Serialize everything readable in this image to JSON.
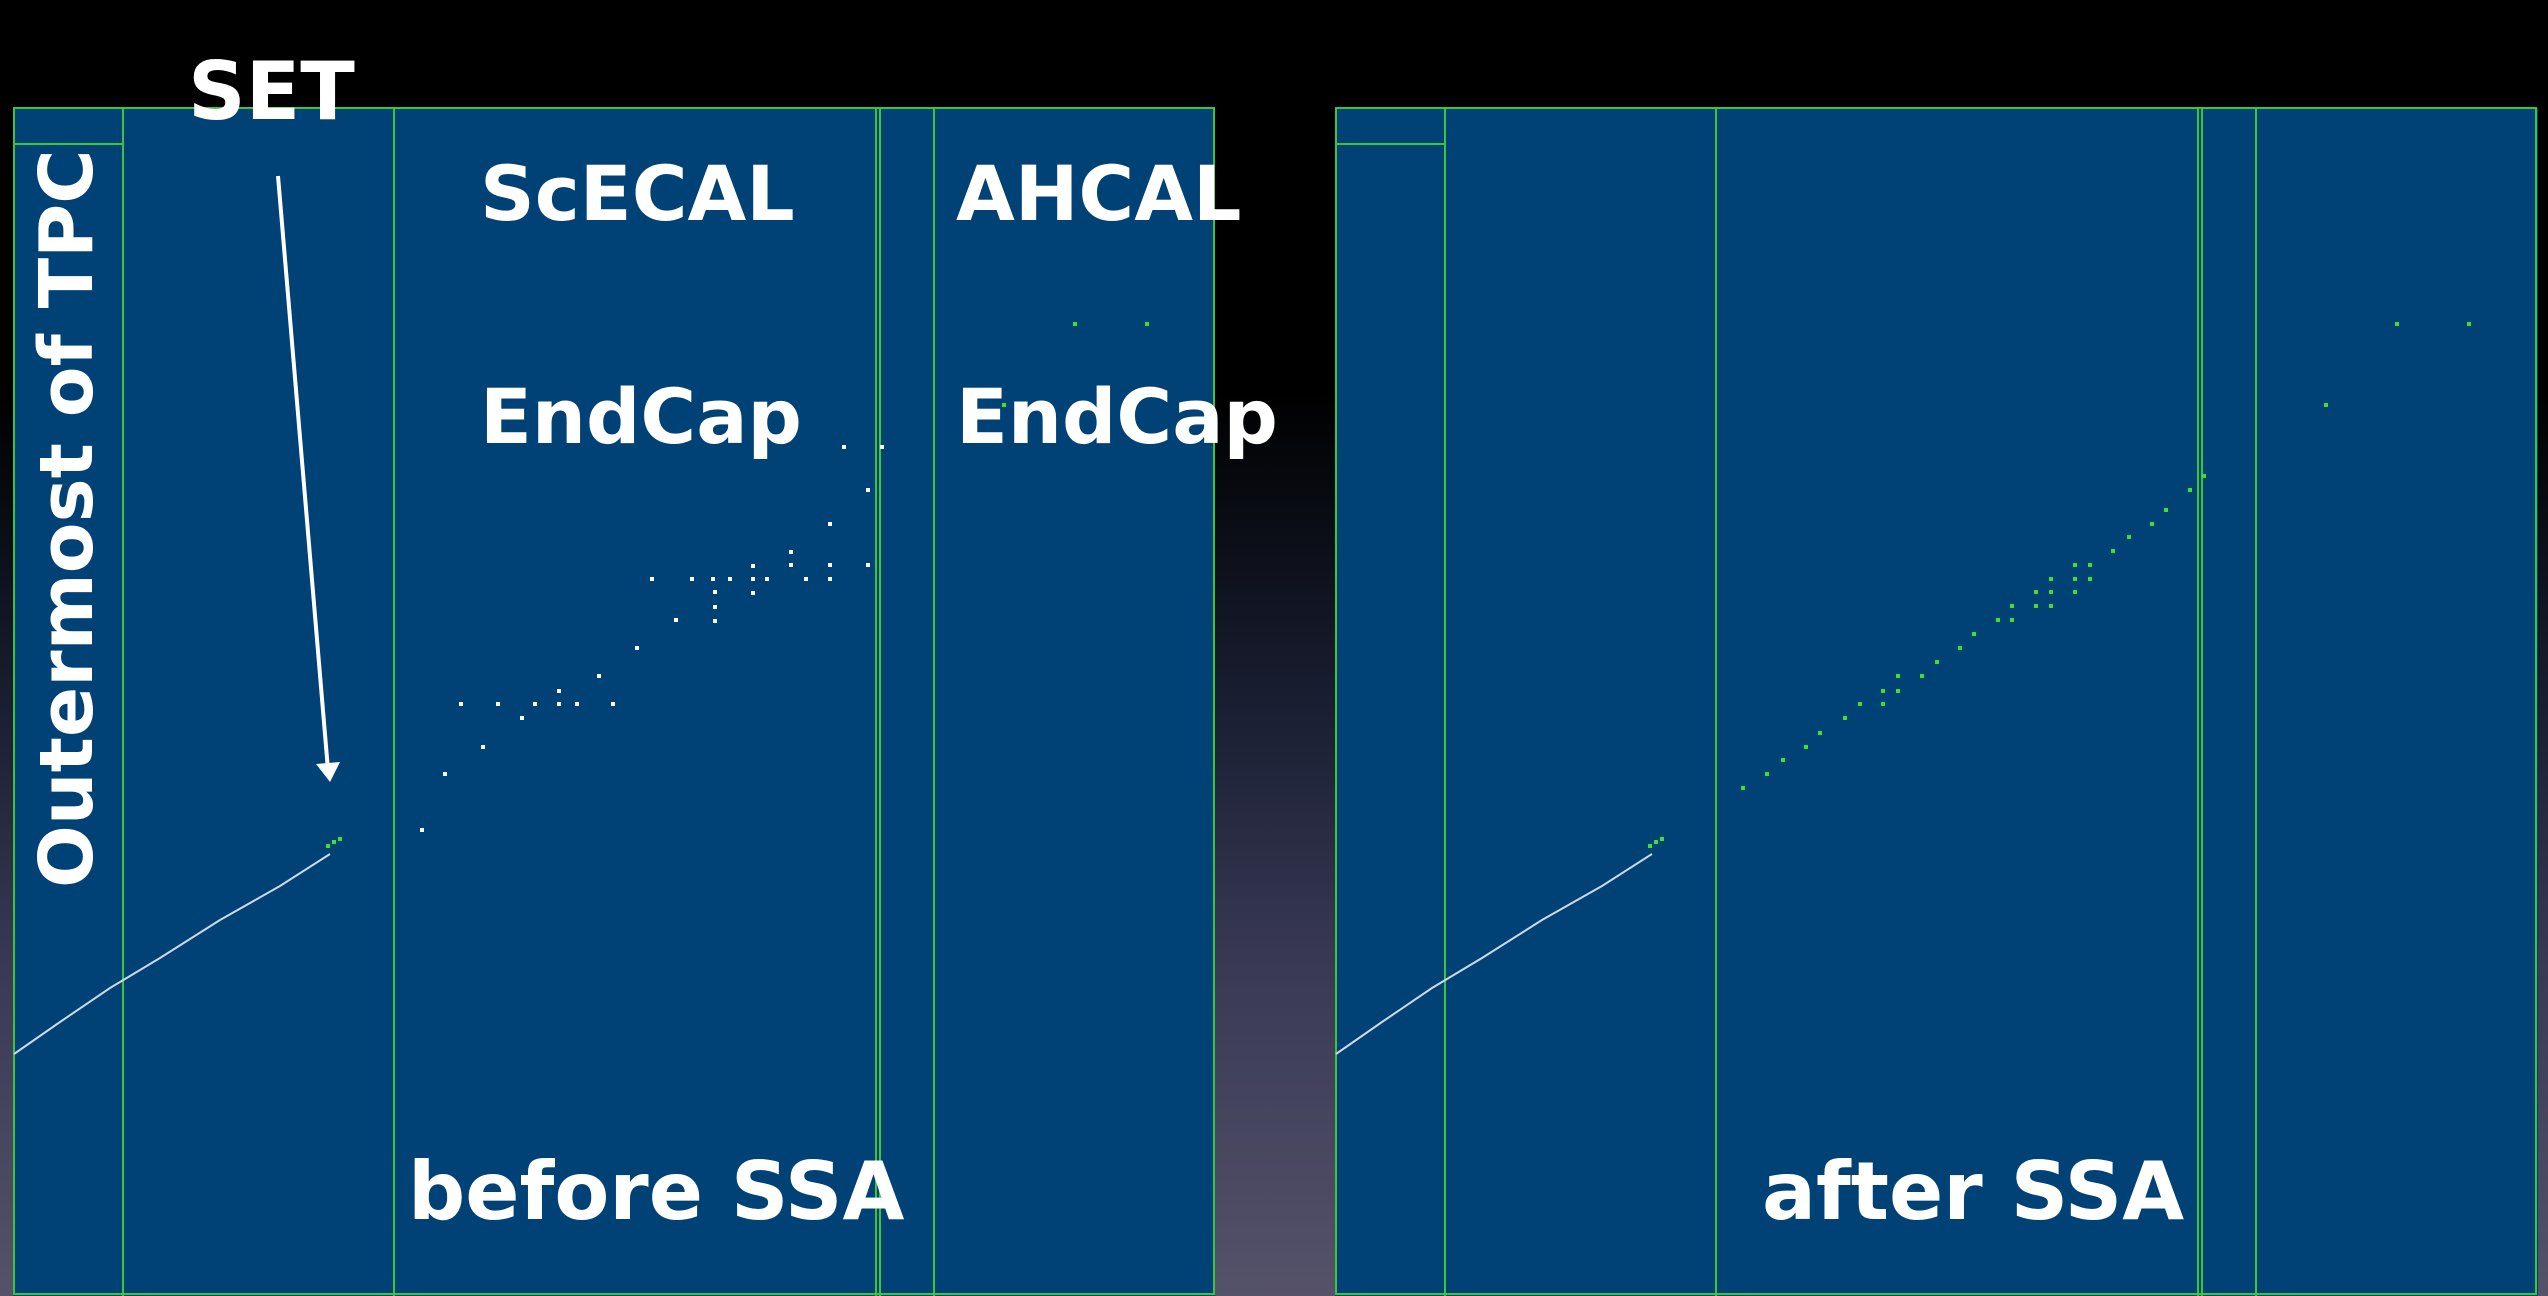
{
  "labels": {
    "set": "SET",
    "scecal_line1": "ScECAL",
    "scecal_line2": "EndCap",
    "ahcal_line1": "AHCAL",
    "ahcal_line2": "EndCap",
    "tpc": "Outermost of TPC",
    "before": "before SSA",
    "after": "after SSA"
  },
  "colors": {
    "panel": "#004176",
    "boundary": "#3cc43c",
    "hit_before": "#ffffff",
    "hit_after": "#3fe02e",
    "track": "#cfd8e6",
    "arrow": "#ffffff"
  }
}
